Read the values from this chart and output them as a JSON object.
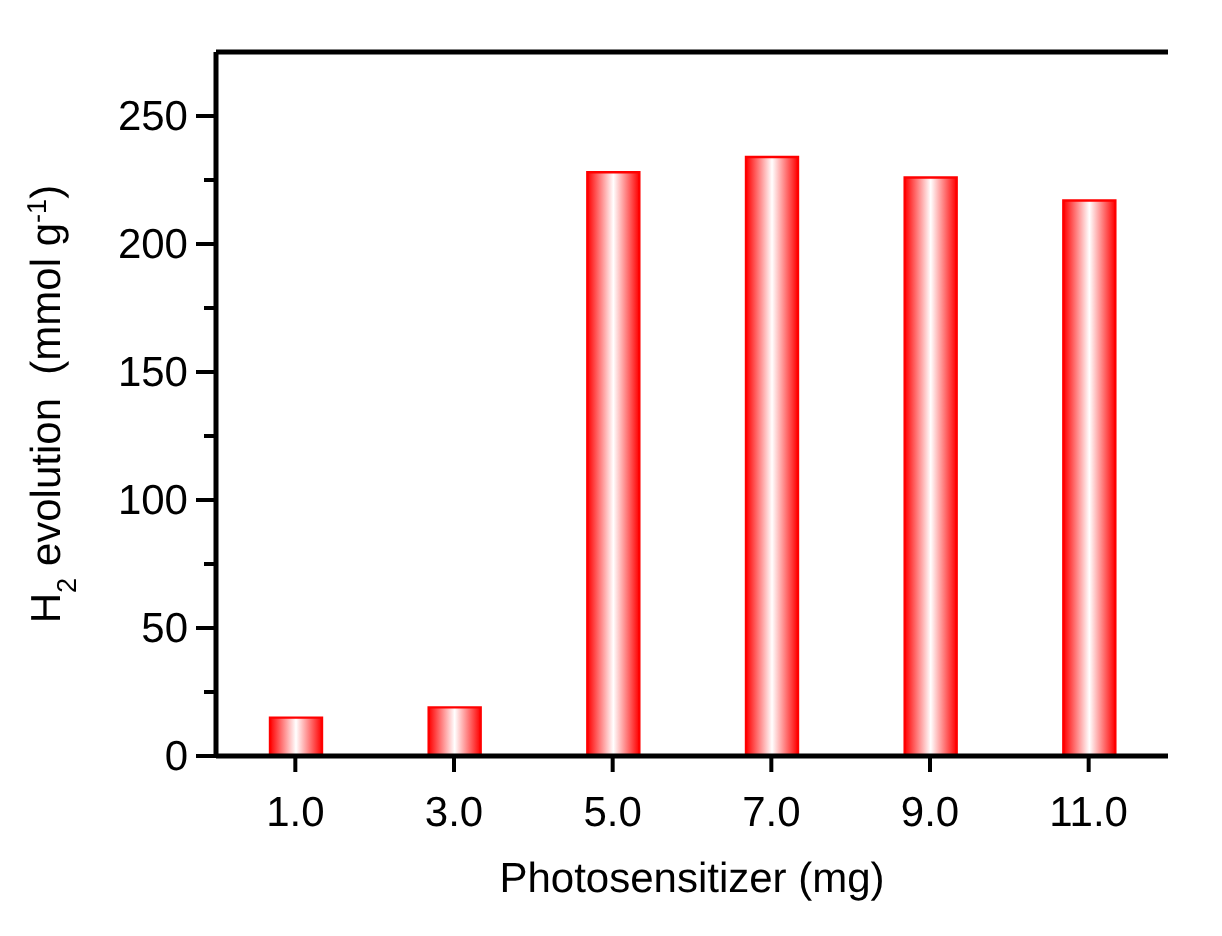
{
  "chart_data": {
    "type": "bar",
    "xlabel": "Photosensitizer (mg)",
    "ylabel": "H$_{2}$ evolution  (mmol g$^{-1}$)",
    "categories": [
      "1.0",
      "3.0",
      "5.0",
      "7.0",
      "9.0",
      "11.0"
    ],
    "values": [
      15,
      19,
      228,
      234,
      226,
      217
    ],
    "color": "#ff0000",
    "ylim": [
      0,
      275
    ],
    "yticks": [
      0,
      {
        "value": 25,
        "label": null
      },
      50,
      {
        "value": 75,
        "label": null
      },
      100,
      {
        "value": 125,
        "label": null
      },
      150,
      {
        "value": 175,
        "label": null
      },
      200,
      {
        "value": 225,
        "label": null
      },
      250
    ],
    "grid": false
  }
}
